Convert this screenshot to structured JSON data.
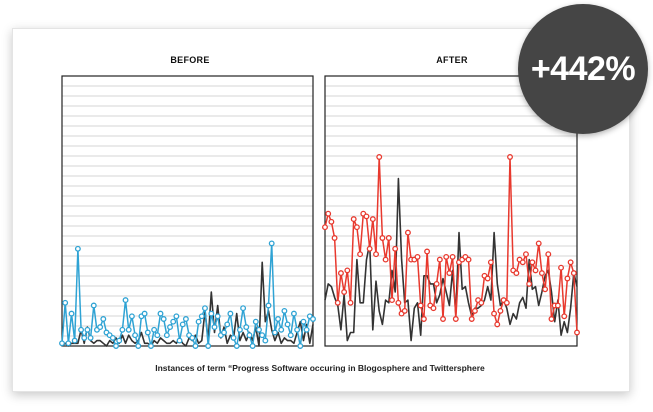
{
  "badge": {
    "text": "+442%"
  },
  "caption": "Instances of term “Progress Software occuring in Blogosphere and Twittersphere",
  "colors": {
    "before_accent": "#2fa3d4",
    "after_accent": "#e8392e",
    "baseline": "#333333",
    "gridline": "#c8c8c8",
    "badge": "#454545"
  },
  "chart_data": [
    {
      "type": "line",
      "title": "BEFORE",
      "grid": true,
      "ylim": [
        0,
        100
      ],
      "x": [
        1,
        2,
        3,
        4,
        5,
        6,
        7,
        8,
        9,
        10,
        11,
        12,
        13,
        14,
        15,
        16,
        17,
        18,
        19,
        20,
        21,
        22,
        23,
        24,
        25,
        26,
        27,
        28,
        29,
        30,
        31,
        32,
        33,
        34,
        35,
        36,
        37,
        38,
        39,
        40,
        41,
        42,
        43,
        44,
        45,
        46,
        47,
        48,
        49,
        50,
        51,
        52,
        53,
        54,
        55,
        56,
        57,
        58,
        59,
        60,
        61,
        62,
        63,
        64,
        65,
        66,
        67,
        68,
        69,
        70,
        71,
        72,
        73,
        74,
        75,
        76,
        77,
        78,
        79,
        80
      ],
      "series": [
        {
          "markers": true,
          "values": [
            1,
            16,
            1,
            12,
            2,
            36,
            6,
            3,
            6,
            3,
            15,
            6,
            7,
            10,
            5,
            4,
            3,
            0,
            2,
            6,
            17,
            6,
            11,
            4,
            0,
            11,
            12,
            5,
            0,
            6,
            4,
            12,
            10,
            4,
            7,
            9,
            11,
            2,
            8,
            10,
            4,
            3,
            0,
            9,
            11,
            14,
            0,
            12,
            7,
            11,
            4,
            5,
            8,
            12,
            3,
            0,
            6,
            14,
            7,
            4,
            0,
            9,
            6,
            4,
            2,
            15,
            38,
            5,
            10,
            6,
            13,
            8,
            4,
            12,
            6,
            0,
            9,
            6,
            11,
            10
          ]
        },
        {
          "markers": false,
          "values": [
            0,
            1,
            0,
            1,
            1,
            1,
            6,
            1,
            7,
            2,
            1,
            2,
            2,
            1,
            0,
            2,
            1,
            3,
            1,
            4,
            1,
            4,
            2,
            1,
            2,
            5,
            1,
            1,
            0,
            2,
            1,
            3,
            2,
            1,
            1,
            2,
            1,
            3,
            1,
            0,
            3,
            2,
            4,
            1,
            2,
            13,
            2,
            20,
            5,
            15,
            3,
            7,
            1,
            4,
            3,
            12,
            2,
            5,
            2,
            5,
            2,
            7,
            0,
            31,
            9,
            13,
            6,
            2,
            5,
            1,
            3,
            2,
            2,
            1,
            5,
            9,
            2,
            8,
            1,
            8
          ]
        }
      ]
    },
    {
      "type": "line",
      "title": "AFTER",
      "grid": true,
      "ylim": [
        0,
        100
      ],
      "x": [
        1,
        2,
        3,
        4,
        5,
        6,
        7,
        8,
        9,
        10,
        11,
        12,
        13,
        14,
        15,
        16,
        17,
        18,
        19,
        20,
        21,
        22,
        23,
        24,
        25,
        26,
        27,
        28,
        29,
        30,
        31,
        32,
        33,
        34,
        35,
        36,
        37,
        38,
        39,
        40,
        41,
        42,
        43,
        44,
        45,
        46,
        47,
        48,
        49,
        50,
        51,
        52,
        53,
        54,
        55,
        56,
        57,
        58,
        59,
        60,
        61,
        62,
        63,
        64,
        65,
        66,
        67,
        68,
        69,
        70,
        71,
        72,
        73,
        74,
        75,
        76,
        77,
        78,
        79,
        80
      ],
      "series": [
        {
          "markers": true,
          "values": [
            44,
            49,
            46,
            40,
            16,
            27,
            20,
            28,
            16,
            47,
            44,
            34,
            49,
            48,
            36,
            47,
            34,
            70,
            40,
            32,
            40,
            17,
            36,
            16,
            12,
            13,
            42,
            32,
            32,
            33,
            15,
            10,
            35,
            15,
            14,
            23,
            32,
            10,
            33,
            27,
            33,
            10,
            31,
            32,
            33,
            32,
            10,
            13,
            17,
            16,
            26,
            25,
            31,
            12,
            8,
            13,
            17,
            16,
            70,
            28,
            27,
            32,
            31,
            34,
            23,
            31,
            28,
            38,
            27,
            21,
            34,
            10,
            15,
            15,
            29,
            11,
            25,
            31,
            27,
            5
          ]
        },
        {
          "markers": false,
          "values": [
            17,
            23,
            22,
            18,
            15,
            6,
            19,
            2,
            5,
            5,
            32,
            16,
            16,
            32,
            38,
            6,
            24,
            13,
            8,
            17,
            16,
            28,
            20,
            62,
            32,
            16,
            17,
            2,
            14,
            16,
            4,
            26,
            26,
            23,
            23,
            16,
            19,
            25,
            20,
            15,
            28,
            12,
            42,
            21,
            22,
            16,
            11,
            14,
            14,
            15,
            17,
            22,
            17,
            42,
            23,
            15,
            17,
            14,
            8,
            12,
            10,
            16,
            18,
            14,
            32,
            21,
            22,
            15,
            20,
            26,
            28,
            20,
            9,
            17,
            4,
            9,
            5,
            14,
            27,
            22
          ]
        }
      ]
    }
  ]
}
